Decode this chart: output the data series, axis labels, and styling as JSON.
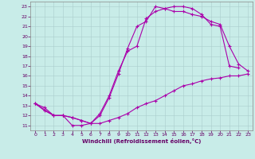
{
  "xlabel": "Windchill (Refroidissement éolien,°C)",
  "bg_color": "#c8ece8",
  "grid_color": "#aacccc",
  "line_color": "#aa00aa",
  "xlim": [
    -0.5,
    23.5
  ],
  "ylim": [
    10.5,
    23.5
  ],
  "xticks": [
    0,
    1,
    2,
    3,
    4,
    5,
    6,
    7,
    8,
    9,
    10,
    11,
    12,
    13,
    14,
    15,
    16,
    17,
    18,
    19,
    20,
    21,
    22,
    23
  ],
  "yticks": [
    11,
    12,
    13,
    14,
    15,
    16,
    17,
    18,
    19,
    20,
    21,
    22,
    23
  ],
  "line1_x": [
    0,
    1,
    2,
    3,
    4,
    5,
    6,
    7,
    8,
    9,
    10,
    11,
    12,
    13,
    14,
    15,
    16,
    17,
    18,
    19,
    20,
    21,
    22
  ],
  "line1_y": [
    13.2,
    12.8,
    12.0,
    12.0,
    11.0,
    11.0,
    11.2,
    12.0,
    13.8,
    16.2,
    18.8,
    21.0,
    21.5,
    23.0,
    22.8,
    23.0,
    23.0,
    22.8,
    22.2,
    21.2,
    21.0,
    17.0,
    16.8
  ],
  "line2_x": [
    0,
    1,
    2,
    3,
    4,
    5,
    6,
    7,
    8,
    9,
    10,
    11,
    12,
    13,
    14,
    15,
    16,
    17,
    18,
    19,
    20,
    21,
    22,
    23
  ],
  "line2_y": [
    13.2,
    12.5,
    12.0,
    12.0,
    11.8,
    11.5,
    11.2,
    11.2,
    11.5,
    11.8,
    12.2,
    12.8,
    13.2,
    13.5,
    14.0,
    14.5,
    15.0,
    15.2,
    15.5,
    15.7,
    15.8,
    16.0,
    16.0,
    16.2
  ],
  "line3_x": [
    0,
    2,
    3,
    4,
    5,
    6,
    7,
    8,
    9,
    10,
    11,
    12,
    13,
    14,
    15,
    16,
    17,
    18,
    19,
    20,
    21,
    22,
    23
  ],
  "line3_y": [
    13.2,
    12.0,
    12.0,
    11.8,
    11.5,
    11.2,
    12.2,
    14.0,
    16.5,
    18.5,
    19.0,
    21.8,
    22.5,
    22.8,
    22.5,
    22.5,
    22.2,
    22.0,
    21.5,
    21.2,
    19.0,
    17.2,
    16.5
  ]
}
